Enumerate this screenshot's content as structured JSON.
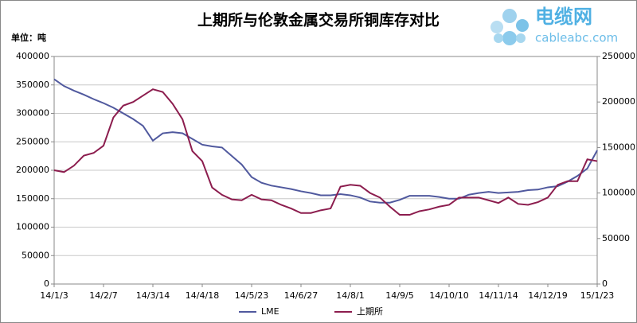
{
  "chart_data": {
    "type": "line",
    "title": "上期所与伦敦金属交易所铜库存对比",
    "unit_label": "单位：吨",
    "logo_title": "电缆网",
    "logo_subtitle": "cableabc.com",
    "categories": [
      "14/1/3",
      null,
      null,
      null,
      null,
      "14/2/7",
      null,
      null,
      null,
      null,
      "14/3/14",
      null,
      null,
      null,
      null,
      "14/4/18",
      null,
      null,
      null,
      null,
      "14/5/23",
      null,
      null,
      null,
      null,
      "14/6/27",
      null,
      null,
      null,
      null,
      "14/8/1",
      null,
      null,
      null,
      null,
      "14/9/5",
      null,
      null,
      null,
      null,
      "14/10/10",
      null,
      null,
      null,
      null,
      "14/11/14",
      null,
      null,
      null,
      null,
      "14/12/19",
      null,
      null,
      null,
      null,
      "15/1/23"
    ],
    "series": [
      {
        "name": "LME",
        "color": "#50599e",
        "axis": "y",
        "values": [
          360000,
          348000,
          340000,
          333000,
          325000,
          318000,
          310000,
          300000,
          290000,
          278000,
          252000,
          265000,
          267000,
          265000,
          255000,
          245000,
          242000,
          240000,
          225000,
          210000,
          188000,
          178000,
          173000,
          170000,
          167000,
          163000,
          160000,
          156000,
          156000,
          158000,
          156000,
          152000,
          145000,
          143000,
          143000,
          148000,
          155000,
          155000,
          155000,
          153000,
          150000,
          150000,
          157000,
          160000,
          162000,
          160000,
          161000,
          162000,
          165000,
          166000,
          170000,
          172000,
          180000,
          190000,
          203000,
          235000
        ]
      },
      {
        "name": "上期所",
        "color": "#8c1d4e",
        "axis": "y2",
        "values": [
          125000,
          123000,
          130000,
          141000,
          144000,
          152000,
          183000,
          196000,
          200000,
          207000,
          214000,
          211000,
          198000,
          181000,
          146000,
          135000,
          106000,
          98000,
          93000,
          92000,
          98000,
          93000,
          92000,
          87000,
          83000,
          78000,
          78000,
          81000,
          83000,
          107000,
          109000,
          108000,
          100000,
          95000,
          85000,
          76000,
          76000,
          80000,
          82000,
          85000,
          87000,
          95000,
          95000,
          95000,
          92000,
          89000,
          95000,
          88000,
          87000,
          90000,
          95000,
          109000,
          113000,
          113000,
          137000,
          135000
        ]
      }
    ],
    "ylim": [
      0,
      400000
    ],
    "yticks": [
      0,
      50000,
      100000,
      150000,
      200000,
      250000,
      300000,
      350000,
      400000
    ],
    "y2lim": [
      0,
      250000
    ],
    "y2ticks": [
      0,
      50000,
      100000,
      150000,
      200000,
      250000
    ],
    "grid": true,
    "legend": "bottom"
  }
}
